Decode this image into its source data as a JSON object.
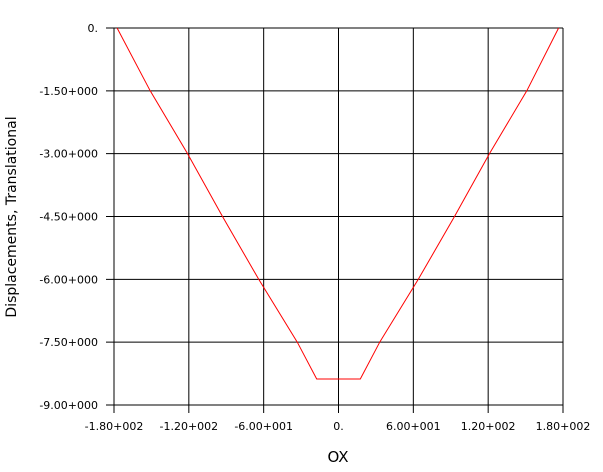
{
  "chart_data": {
    "type": "line",
    "xlabel": "OX",
    "ylabel": "Displacements, Translational",
    "xlim": [
      -180,
      180
    ],
    "ylim": [
      -9,
      0
    ],
    "grid": true,
    "x_ticks": [
      -180,
      -120,
      -60,
      0,
      60,
      120,
      180
    ],
    "x_tick_labels": [
      "-1.80+002",
      "-1.20+002",
      "-6.00+001",
      "0.",
      "6.00+001",
      "1.20+002",
      "1.80+002"
    ],
    "y_ticks": [
      0,
      -1.5,
      -3,
      -4.5,
      -6,
      -7.5,
      -9
    ],
    "y_tick_labels": [
      "0.",
      "-1.50+000",
      "-3.00+000",
      "-4.50+000",
      "-6.00+000",
      "-7.50+000",
      "-9.00+000"
    ],
    "series": [
      {
        "color": "#ff0000",
        "x": [
          -177.5,
          -151,
          -121,
          -93,
          -64,
          -33,
          -17.5,
          17.5,
          33,
          64,
          93,
          121,
          151,
          176.5
        ],
        "y": [
          0,
          -1.5,
          -3,
          -4.5,
          -6,
          -7.5,
          -8.38,
          -8.38,
          -7.5,
          -6,
          -4.5,
          -3,
          -1.5,
          0
        ]
      }
    ]
  }
}
